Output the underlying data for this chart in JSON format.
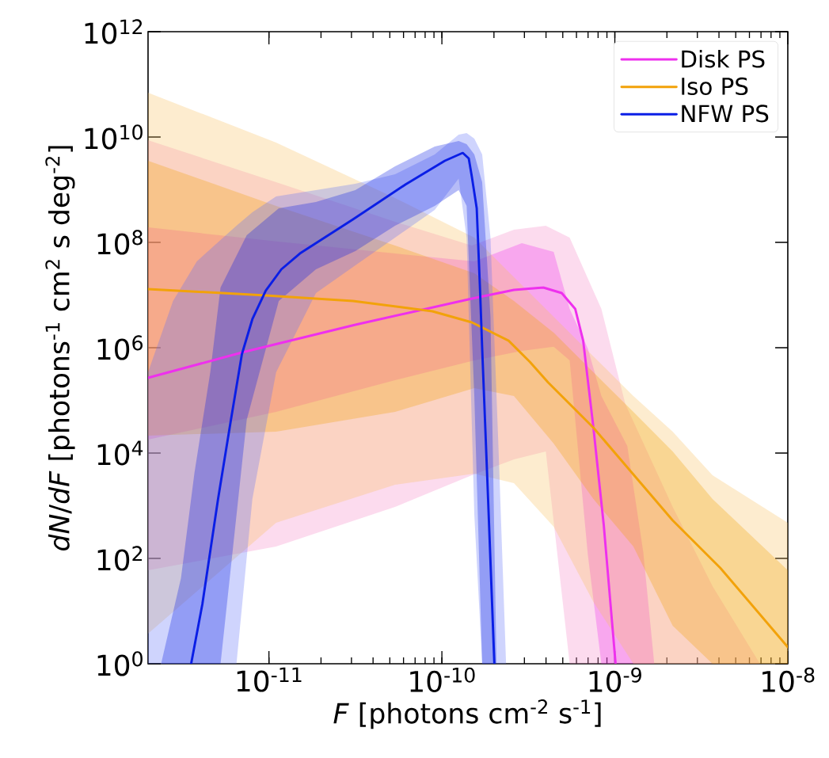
{
  "chart_data": {
    "type": "line",
    "log": "xy",
    "xlabel": "*F*  [photons cm$^{-2}$ s$^{-1}$]",
    "ylabel": "*dN*/*dF* [photons$^{-1}$ cm$^{2}$ s deg$^{-2}$]",
    "xlim": [
      2e-12,
      1e-08
    ],
    "ylim": [
      1,
      1000000000000.0
    ],
    "xticks": [
      {
        "value": 1e-11,
        "label": "10$^{-11}$"
      },
      {
        "value": 1e-10,
        "label": "10$^{-10}$"
      },
      {
        "value": 1e-09,
        "label": "10$^{-9}$"
      },
      {
        "value": 1e-08,
        "label": "10$^{-8}$"
      }
    ],
    "yticks": [
      {
        "value": 1,
        "label": "10$^{0}$"
      },
      {
        "value": 100,
        "label": "10$^{2}$"
      },
      {
        "value": 10000.0,
        "label": "10$^{4}$"
      },
      {
        "value": 1000000.0,
        "label": "10$^{6}$"
      },
      {
        "value": 100000000.0,
        "label": "10$^{8}$"
      },
      {
        "value": 10000000000.0,
        "label": "10$^{10}$"
      },
      {
        "value": 1000000000000.0,
        "label": "10$^{12}$"
      }
    ],
    "legend": "top right",
    "series": [
      {
        "name": "Disk PS",
        "color": "#ee30ee",
        "x": [
          2e-12,
          6.98e-12,
          3.16e-11,
          1.49e-10,
          2.61e-10,
          3.86e-10,
          4.93e-10,
          5.9e-10,
          6.56e-10,
          7.52e-10,
          8.63e-10,
          1.01e-09
        ],
        "values": [
          268000.0,
          813000.0,
          2730000.0,
          8550000.0,
          12500000.0,
          13900000.0,
          10900000.0,
          5460000.0,
          1360000.0,
          30300.0,
          428,
          1
        ]
      },
      {
        "name": "Iso PS",
        "color": "#f2a20a",
        "x": [
          2e-12,
          9.59e-12,
          3.06e-11,
          8.81e-11,
          1.49e-10,
          2.43e-10,
          3.23e-10,
          4.12e-10,
          7.52e-10,
          1.18e-09,
          2.16e-09,
          4.07e-09,
          1e-08
        ],
        "values": [
          13000000.0,
          9820000.0,
          7710000.0,
          4920000.0,
          3030000.0,
          1360000.0,
          536000.0,
          218000.0,
          30300.0,
          5360.0,
          527,
          66.1,
          2.07
        ]
      },
      {
        "name": "NFW PS",
        "color": "#0a1ee6",
        "x": [
          3.55e-12,
          4.12e-12,
          5.08e-12,
          6.03e-12,
          6.98e-12,
          8.02e-12,
          9.59e-12,
          1.18e-11,
          1.51e-11,
          3.06e-11,
          6.15e-11,
          1.04e-10,
          1.32e-10,
          1.43e-10,
          1.49e-10,
          1.59e-10,
          1.66e-10,
          1.71e-10,
          1.85e-10,
          2.01e-10
        ],
        "values": [
          1,
          13.4,
          1340,
          42900.0,
          759000.0,
          3480000.0,
          12100000.0,
          30800000.0,
          61500000.0,
          273000000.0,
          1250000000.0,
          3540000000.0,
          5000000000.0,
          3930000000.0,
          1770000000.0,
          444000000.0,
          13900000.0,
          966000.0,
          1340,
          1.04
        ]
      },
      {
        "color": "#f488c8",
        "x": [
          2e-12,
          1.1e-11,
          5.36e-11,
          1.49e-10,
          2.61e-10,
          3.99e-10,
          5.48e-10,
          8.36e-10,
          1.15e-09,
          2.16e-09,
          3.67e-09,
          6.9e-09
        ],
        "values": [
          null,
          null,
          null,
          null,
          null,
          null,
          null,
          null,
          null,
          null,
          null,
          null
        ],
        "upper": [
          8710000000.0,
          1390000000.0,
          246000000.0,
          87100000.0,
          174000000.0,
          207000000.0,
          123000000.0,
          5460000.0,
          85500.0,
          949,
          29.8,
          1
        ],
        "lower": [
          59.5,
          168,
          949,
          3790.0,
          7590.0,
          10700.0,
          1,
          1,
          1,
          1,
          1,
          1
        ]
      },
      {
        "color": "#ee30ee",
        "x": [
          2e-12,
          1.1e-11,
          5.36e-11,
          1.54e-10,
          2.9e-10,
          4.43e-10,
          5.48e-10,
          6.98e-10,
          8.36e-10,
          1.18e-09,
          1.46e-09,
          1.69e-09
        ],
        "values": [
          null,
          null,
          null,
          null,
          null,
          null,
          null,
          null,
          null,
          null,
          null,
          null
        ],
        "upper": [
          193000000.0,
          104000000.0,
          61500000.0,
          43600000.0,
          96600000.0,
          66100000.0,
          5460000.0,
          966000.0,
          121000.0,
          13600.0,
          132,
          1
        ],
        "lower": [
          18000.0,
          60500.0,
          242000.0,
          574000.0,
          871000.0,
          1040000.0,
          574000.0,
          119,
          1,
          1,
          1,
          1
        ]
      },
      {
        "color": "#f8c060",
        "x": [
          2e-12,
          1.1e-11,
          5.36e-11,
          1.54e-10,
          2.61e-10,
          4.43e-10,
          7.52e-10,
          1.28e-09,
          2.16e-09,
          3.67e-09,
          1e-08
        ],
        "values": [
          null,
          null,
          null,
          null,
          null,
          null,
          null,
          null,
          null,
          null,
          null
        ],
        "upper": [
          69500000000.0,
          7850000000.0,
          695000000.0,
          123000000.0,
          21800000.0,
          3860000.0,
          684000.0,
          121000.0,
          25500.0,
          3790.0,
          475
        ],
        "lower": [
          3.73,
          475,
          2500.0,
          4060.0,
          2680.0,
          400,
          14.9,
          1,
          1,
          1,
          1
        ]
      },
      {
        "color": "#f2a20a",
        "x": [
          2e-12,
          1.1e-11,
          5.36e-11,
          1.54e-10,
          2.61e-10,
          4.43e-10,
          7.52e-10,
          1.28e-09,
          2.16e-09,
          3.67e-09,
          1e-08
        ],
        "values": [
          null,
          null,
          null,
          null,
          null,
          null,
          null,
          null,
          null,
          null,
          null
        ],
        "upper": [
          3540000000.0,
          492000000.0,
          87100000.0,
          25900000.0,
          7710000.0,
          1930000.0,
          342000.0,
          60500.0,
          10700.0,
          1340.0,
          59.5
        ],
        "lower": [
          21400.0,
          25500.0,
          60500.0,
          171000.0,
          121000.0,
          15100.0,
          1340.0,
          168,
          5.27,
          1,
          1
        ]
      },
      {
        "color": "#6070f8",
        "x": [
          2e-12,
          2.79e-12,
          3.83e-12,
          5.25e-12,
          6.49e-12,
          8.02e-12,
          1.1e-11,
          1.87e-11,
          3.16e-11,
          5.36e-11,
          9.09e-11,
          1.25e-10,
          1.39e-10,
          1.54e-10,
          1.71e-10,
          1.91e-10,
          2.12e-10,
          2.35e-10
        ],
        "values": [
          null,
          null,
          null,
          null,
          null,
          null,
          null,
          null,
          null,
          null,
          null,
          null,
          null,
          null,
          null,
          null,
          null,
          null
        ],
        "upper": [
          342000.0,
          7710000.0,
          43600000.0,
          111000000.0,
          207000000.0,
          373000000.0,
          745000000.0,
          982000000.0,
          1300000000.0,
          1960000000.0,
          4670000000.0,
          11100000000.0,
          11900000000.0,
          9330000000.0,
          4670000000.0,
          123000000.0,
          15100.0,
          1
        ],
        "lower": [
          1,
          1,
          1,
          1,
          1,
          1340.0,
          342000.0,
          10900000.0,
          36600000.0,
          123000000.0,
          414000000.0,
          1630000000.0,
          123000000.0,
          671,
          1,
          1,
          1,
          1
        ]
      },
      {
        "color": "#0a1ee6",
        "x": [
          2.38e-12,
          3.1e-12,
          3.71e-12,
          4.58e-12,
          5.25e-12,
          7.44e-12,
          1.14e-11,
          1.87e-11,
          3.16e-11,
          5.36e-11,
          9.09e-11,
          1.25e-10,
          1.39e-10,
          1.54e-10,
          1.71e-10,
          1.91e-10,
          2.07e-10
        ],
        "values": [
          null,
          null,
          null,
          null,
          null,
          null,
          null,
          null,
          null,
          null,
          null,
          null,
          null,
          null,
          null,
          null,
          null
        ],
        "upper": [
          1,
          42.1,
          4210.0,
          342000.0,
          13900000.0,
          137000000.0,
          444000000.0,
          585000000.0,
          982000000.0,
          2780000000.0,
          6610000000.0,
          8410000000.0,
          7330000000.0,
          4670000000.0,
          1390000000.0,
          3860000.0,
          1
        ],
        "lower": [
          1,
          1,
          1,
          1,
          1,
          42900.0,
          7710000.0,
          30800000.0,
          68400000.0,
          207000000.0,
          492000000.0,
          982000000.0,
          492000000.0,
          121000.0,
          1,
          1,
          1
        ]
      }
    ]
  }
}
